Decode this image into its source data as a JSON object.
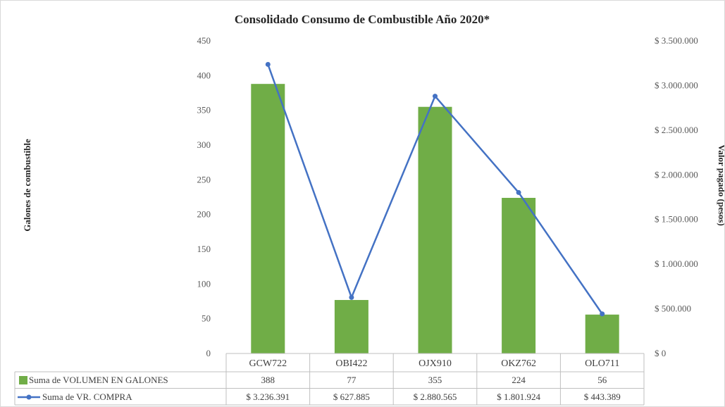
{
  "chart_data": {
    "type": "bar",
    "title": "Consolidado Consumo de Combustible Año 2020*",
    "ylabel": "Galones de combustible",
    "y2label": "Valor pagado (pesos)",
    "categories": [
      "GCW722",
      "OBI422",
      "OJX910",
      "OKZ762",
      "OLO711"
    ],
    "ylim": [
      0,
      450
    ],
    "y2lim": [
      0,
      3500000
    ],
    "yticks": [
      "0",
      "50",
      "100",
      "150",
      "200",
      "250",
      "300",
      "350",
      "400",
      "450"
    ],
    "y2ticks": [
      "$ 0",
      "$ 500.000",
      "$ 1.000.000",
      "$ 1.500.000",
      "$ 2.000.000",
      "$ 2.500.000",
      "$ 3.000.000",
      "$ 3.500.000"
    ],
    "series": [
      {
        "name": "Suma de VOLUMEN EN GALONES",
        "type": "bar",
        "axis": "left",
        "color": "#70ad47",
        "values": [
          388,
          77,
          355,
          224,
          56
        ],
        "labels": [
          "388",
          "77",
          "355",
          "224",
          "56"
        ]
      },
      {
        "name": "Suma de VR. COMPRA",
        "type": "line",
        "axis": "right",
        "color": "#4472c4",
        "values": [
          3236391,
          627885,
          2880565,
          1801924,
          443389
        ],
        "labels": [
          "$ 3.236.391",
          "$ 627.885",
          "$ 2.880.565",
          "$ 1.801.924",
          "$ 443.389"
        ]
      }
    ],
    "data_table": true,
    "grid": false
  }
}
